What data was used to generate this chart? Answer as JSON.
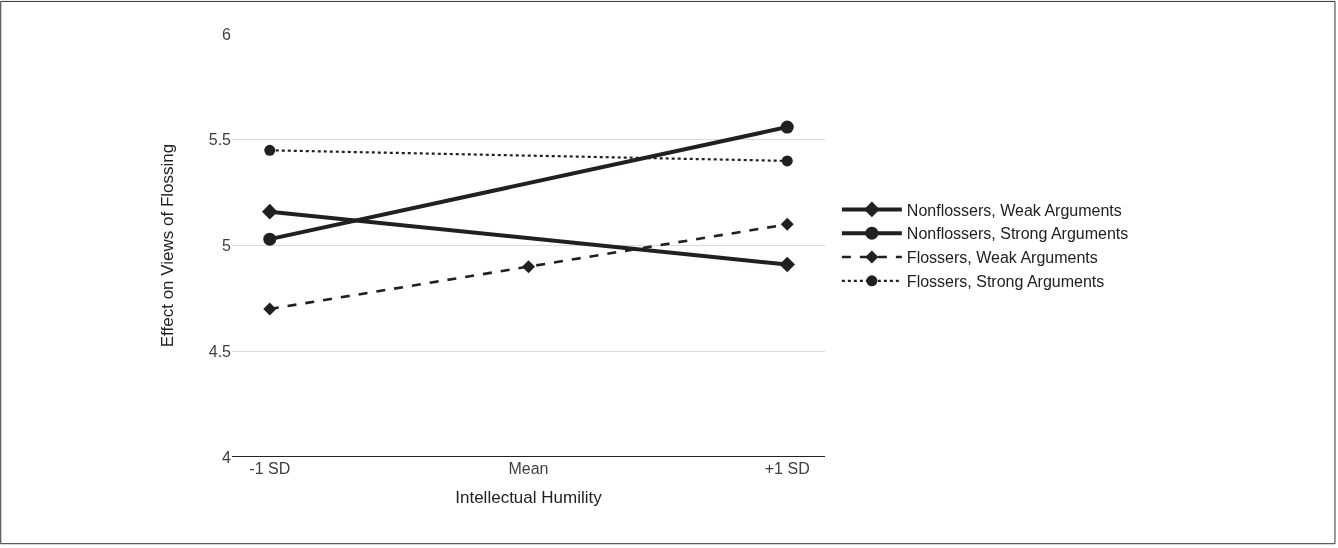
{
  "chart_data": {
    "type": "line",
    "xlabel": "Intellectual Humility",
    "ylabel": "Effect on Views of Flossing",
    "categories": [
      "-1 SD",
      "Mean",
      "+1 SD"
    ],
    "series": [
      {
        "name": "Nonflossers, Weak Arguments",
        "color": "#231f20",
        "x": [
          "-1 SD",
          "+1 SD"
        ],
        "values": [
          5.16,
          4.91
        ],
        "marker": "diamond",
        "line_style": "solid"
      },
      {
        "name": "Nonflossers, Strong Arguments",
        "color": "#231f20",
        "x": [
          "-1 SD",
          "+1 SD"
        ],
        "values": [
          5.03,
          5.56
        ],
        "marker": "circle",
        "line_style": "solid"
      },
      {
        "name": "Flossers, Weak Arguments",
        "color": "#231f20",
        "x": [
          "-1 SD",
          "Mean",
          "+1 SD"
        ],
        "values": [
          4.7,
          4.9,
          5.1
        ],
        "marker": "diamond",
        "line_style": "dashed"
      },
      {
        "name": "Flossers, Strong Arguments",
        "color": "#231f20",
        "x": [
          "-1 SD",
          "+1 SD"
        ],
        "values": [
          5.45,
          5.4
        ],
        "marker": "circle",
        "line_style": "dotted"
      }
    ],
    "ylim": [
      4,
      6
    ],
    "yticks": [
      4,
      4.5,
      5,
      5.5,
      6
    ],
    "grid": "y",
    "legend": "right"
  }
}
